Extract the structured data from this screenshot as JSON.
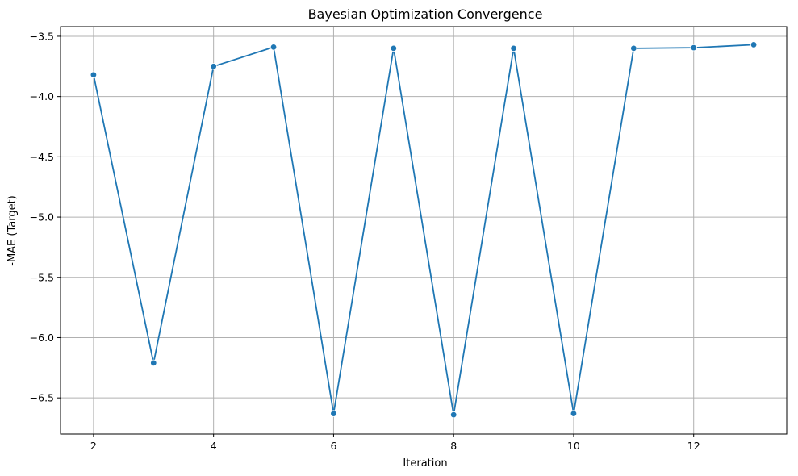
{
  "chart_data": {
    "type": "line",
    "title": "Bayesian Optimization Convergence",
    "xlabel": "Iteration",
    "ylabel": "-MAE (Target)",
    "x": [
      2,
      3,
      4,
      5,
      6,
      7,
      8,
      9,
      10,
      11,
      12,
      13
    ],
    "series": [
      {
        "values": [
          -3.82,
          -6.21,
          -3.75,
          -3.59,
          -6.63,
          -3.6,
          -6.64,
          -3.6,
          -6.63,
          -3.6,
          -3.595,
          -3.57
        ],
        "color": "#1f77b4",
        "marker": "circle"
      }
    ],
    "xlim": [
      1.45,
      13.55
    ],
    "ylim": [
      -6.8,
      -3.42
    ],
    "xticks": [
      2,
      4,
      6,
      8,
      10,
      12
    ],
    "xtick_labels": [
      "2",
      "4",
      "6",
      "8",
      "10",
      "12"
    ],
    "yticks": [
      -3.5,
      -4.0,
      -4.5,
      -5.0,
      -5.5,
      -6.0,
      -6.5
    ],
    "ytick_labels": [
      "−3.5",
      "−4.0",
      "−4.5",
      "−5.0",
      "−5.5",
      "−6.0",
      "−6.5"
    ],
    "grid": true,
    "legend": false
  }
}
